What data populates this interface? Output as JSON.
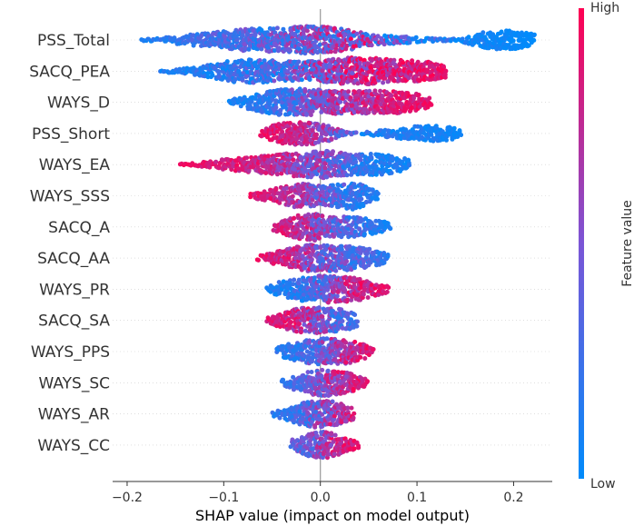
{
  "chart_data": {
    "type": "scatter",
    "subtype": "shap-beeswarm",
    "xlabel": "SHAP value (impact on model output)",
    "xlim": [
      -0.215,
      0.24
    ],
    "x_ticks": [
      -0.2,
      -0.1,
      0.0,
      0.1,
      0.2
    ],
    "x_tick_labels": [
      "−0.2",
      "−0.1",
      "0.0",
      "0.1",
      "0.2"
    ],
    "zero_line": true,
    "colorbar": {
      "title": "Feature value",
      "high_label": "High",
      "low_label": "Low",
      "high_color": "#ff0052",
      "low_color": "#008bfb"
    },
    "features": [
      {
        "name": "PSS_Total",
        "min": -0.195,
        "max": 0.222,
        "dist": [
          [
            -0.2,
            0.0,
            0.04,
            0.1
          ],
          [
            -0.18,
            0.1,
            0.1,
            0.1
          ],
          [
            -0.16,
            0.22,
            0.16,
            0.12
          ],
          [
            -0.14,
            0.35,
            0.2,
            0.12
          ],
          [
            -0.12,
            0.5,
            0.25,
            0.15
          ],
          [
            -0.1,
            0.65,
            0.28,
            0.2
          ],
          [
            -0.08,
            0.8,
            0.3,
            0.25
          ],
          [
            -0.06,
            0.85,
            0.32,
            0.3
          ],
          [
            -0.04,
            0.9,
            0.38,
            0.3
          ],
          [
            -0.02,
            1.0,
            0.45,
            0.35
          ],
          [
            0.0,
            1.0,
            0.5,
            0.4
          ],
          [
            0.02,
            0.85,
            0.55,
            0.4
          ],
          [
            0.04,
            0.6,
            0.55,
            0.45
          ],
          [
            0.05,
            0.4,
            0.5,
            0.5
          ],
          [
            0.07,
            0.3,
            0.2,
            0.5
          ],
          [
            0.1,
            0.2,
            0.15,
            0.4
          ],
          [
            0.12,
            0.1,
            0.1,
            0.3
          ],
          [
            0.145,
            0.08,
            0.0,
            0.2
          ],
          [
            0.16,
            0.45,
            0.05,
            0.1
          ],
          [
            0.18,
            0.7,
            0.05,
            0.08
          ],
          [
            0.2,
            0.7,
            0.03,
            0.05
          ],
          [
            0.222,
            0.4,
            0.0,
            0.05
          ]
        ]
      },
      {
        "name": "SACQ_PEA",
        "min": -0.17,
        "max": 0.13,
        "dist": [
          [
            -0.17,
            0.05,
            0.1,
            0.1
          ],
          [
            -0.15,
            0.15,
            0.1,
            0.1
          ],
          [
            -0.13,
            0.3,
            0.15,
            0.12
          ],
          [
            -0.11,
            0.55,
            0.15,
            0.15
          ],
          [
            -0.09,
            0.8,
            0.18,
            0.2
          ],
          [
            -0.07,
            0.85,
            0.22,
            0.25
          ],
          [
            -0.05,
            0.8,
            0.28,
            0.3
          ],
          [
            -0.03,
            0.7,
            0.35,
            0.35
          ],
          [
            -0.01,
            0.75,
            0.45,
            0.4
          ],
          [
            0.01,
            0.85,
            0.6,
            0.4
          ],
          [
            0.03,
            1.0,
            0.7,
            0.35
          ],
          [
            0.05,
            1.0,
            0.75,
            0.3
          ],
          [
            0.07,
            0.9,
            0.8,
            0.25
          ],
          [
            0.09,
            0.8,
            0.85,
            0.2
          ],
          [
            0.11,
            0.7,
            0.88,
            0.15
          ],
          [
            0.13,
            0.5,
            0.92,
            0.1
          ]
        ]
      },
      {
        "name": "WAYS_D",
        "min": -0.095,
        "max": 0.115,
        "dist": [
          [
            -0.095,
            0.15,
            0.1,
            0.1
          ],
          [
            -0.08,
            0.4,
            0.1,
            0.1
          ],
          [
            -0.06,
            0.75,
            0.15,
            0.15
          ],
          [
            -0.04,
            0.95,
            0.25,
            0.2
          ],
          [
            -0.02,
            1.0,
            0.4,
            0.3
          ],
          [
            0.0,
            0.9,
            0.55,
            0.3
          ],
          [
            0.02,
            0.85,
            0.65,
            0.3
          ],
          [
            0.04,
            0.85,
            0.72,
            0.25
          ],
          [
            0.06,
            0.85,
            0.78,
            0.2
          ],
          [
            0.08,
            0.8,
            0.85,
            0.15
          ],
          [
            0.1,
            0.6,
            0.88,
            0.12
          ],
          [
            0.115,
            0.3,
            0.9,
            0.1
          ]
        ]
      },
      {
        "name": "PSS_Short",
        "min": -0.062,
        "max": 0.147,
        "dist": [
          [
            -0.062,
            0.2,
            0.9,
            0.1
          ],
          [
            -0.05,
            0.6,
            0.88,
            0.1
          ],
          [
            -0.03,
            0.85,
            0.8,
            0.15
          ],
          [
            -0.01,
            0.8,
            0.7,
            0.2
          ],
          [
            0.01,
            0.55,
            0.55,
            0.25
          ],
          [
            0.02,
            0.25,
            0.5,
            0.3
          ],
          [
            0.04,
            0.05,
            0.2,
            0.2
          ],
          [
            0.06,
            0.2,
            0.15,
            0.15
          ],
          [
            0.08,
            0.35,
            0.12,
            0.12
          ],
          [
            0.1,
            0.55,
            0.1,
            0.1
          ],
          [
            0.12,
            0.6,
            0.08,
            0.08
          ],
          [
            0.14,
            0.4,
            0.05,
            0.05
          ],
          [
            0.147,
            0.15,
            0.05,
            0.05
          ]
        ]
      },
      {
        "name": "WAYS_EA",
        "min": -0.15,
        "max": 0.093,
        "dist": [
          [
            -0.15,
            0.05,
            0.95,
            0.05
          ],
          [
            -0.13,
            0.15,
            0.92,
            0.08
          ],
          [
            -0.11,
            0.3,
            0.88,
            0.1
          ],
          [
            -0.09,
            0.45,
            0.85,
            0.12
          ],
          [
            -0.07,
            0.6,
            0.8,
            0.15
          ],
          [
            -0.05,
            0.7,
            0.75,
            0.2
          ],
          [
            -0.03,
            0.85,
            0.65,
            0.25
          ],
          [
            -0.01,
            0.95,
            0.55,
            0.3
          ],
          [
            0.01,
            1.0,
            0.45,
            0.3
          ],
          [
            0.03,
            0.75,
            0.3,
            0.25
          ],
          [
            0.05,
            0.8,
            0.15,
            0.15
          ],
          [
            0.07,
            0.7,
            0.1,
            0.12
          ],
          [
            0.09,
            0.4,
            0.08,
            0.1
          ]
        ]
      },
      {
        "name": "WAYS_SSS",
        "min": -0.073,
        "max": 0.06,
        "dist": [
          [
            -0.073,
            0.15,
            0.9,
            0.1
          ],
          [
            -0.06,
            0.35,
            0.88,
            0.1
          ],
          [
            -0.04,
            0.65,
            0.8,
            0.15
          ],
          [
            -0.02,
            0.9,
            0.65,
            0.2
          ],
          [
            0.0,
            0.75,
            0.45,
            0.3
          ],
          [
            0.02,
            0.85,
            0.3,
            0.25
          ],
          [
            0.035,
            1.0,
            0.22,
            0.2
          ],
          [
            0.05,
            0.6,
            0.15,
            0.15
          ],
          [
            0.06,
            0.25,
            0.1,
            0.1
          ]
        ]
      },
      {
        "name": "SACQ_A",
        "min": -0.048,
        "max": 0.072,
        "dist": [
          [
            -0.048,
            0.25,
            0.85,
            0.1
          ],
          [
            -0.035,
            0.6,
            0.82,
            0.12
          ],
          [
            -0.02,
            0.9,
            0.72,
            0.2
          ],
          [
            -0.005,
            1.0,
            0.6,
            0.3
          ],
          [
            0.01,
            0.7,
            0.45,
            0.3
          ],
          [
            0.025,
            0.75,
            0.35,
            0.25
          ],
          [
            0.04,
            0.7,
            0.25,
            0.2
          ],
          [
            0.055,
            0.5,
            0.15,
            0.15
          ],
          [
            0.07,
            0.35,
            0.1,
            0.1
          ]
        ]
      },
      {
        "name": "SACQ_AA",
        "min": -0.065,
        "max": 0.07,
        "dist": [
          [
            -0.065,
            0.15,
            0.9,
            0.1
          ],
          [
            -0.05,
            0.4,
            0.85,
            0.12
          ],
          [
            -0.03,
            0.75,
            0.75,
            0.2
          ],
          [
            -0.01,
            1.0,
            0.6,
            0.3
          ],
          [
            0.01,
            0.95,
            0.45,
            0.3
          ],
          [
            0.03,
            0.9,
            0.35,
            0.25
          ],
          [
            0.05,
            0.7,
            0.25,
            0.2
          ],
          [
            0.07,
            0.35,
            0.15,
            0.15
          ]
        ]
      },
      {
        "name": "WAYS_PR",
        "min": -0.055,
        "max": 0.07,
        "dist": [
          [
            -0.055,
            0.2,
            0.1,
            0.1
          ],
          [
            -0.04,
            0.6,
            0.12,
            0.12
          ],
          [
            -0.02,
            0.85,
            0.2,
            0.2
          ],
          [
            0.0,
            1.0,
            0.4,
            0.3
          ],
          [
            0.02,
            0.95,
            0.65,
            0.3
          ],
          [
            0.04,
            0.8,
            0.8,
            0.2
          ],
          [
            0.055,
            0.5,
            0.85,
            0.15
          ],
          [
            0.07,
            0.25,
            0.9,
            0.1
          ]
        ]
      },
      {
        "name": "SACQ_SA",
        "min": -0.055,
        "max": 0.038,
        "dist": [
          [
            -0.055,
            0.2,
            0.9,
            0.1
          ],
          [
            -0.04,
            0.55,
            0.85,
            0.12
          ],
          [
            -0.025,
            0.85,
            0.78,
            0.2
          ],
          [
            -0.01,
            1.0,
            0.65,
            0.3
          ],
          [
            0.005,
            0.9,
            0.45,
            0.3
          ],
          [
            0.02,
            0.85,
            0.3,
            0.25
          ],
          [
            0.038,
            0.45,
            0.2,
            0.15
          ]
        ]
      },
      {
        "name": "WAYS_PPS",
        "min": -0.045,
        "max": 0.055,
        "dist": [
          [
            -0.045,
            0.3,
            0.15,
            0.1
          ],
          [
            -0.03,
            0.6,
            0.18,
            0.15
          ],
          [
            -0.015,
            0.85,
            0.3,
            0.2
          ],
          [
            0.0,
            0.95,
            0.45,
            0.3
          ],
          [
            0.015,
            1.0,
            0.6,
            0.3
          ],
          [
            0.03,
            0.85,
            0.75,
            0.2
          ],
          [
            0.045,
            0.55,
            0.85,
            0.15
          ],
          [
            0.055,
            0.25,
            0.9,
            0.1
          ]
        ]
      },
      {
        "name": "WAYS_SC",
        "min": -0.04,
        "max": 0.048,
        "dist": [
          [
            -0.04,
            0.2,
            0.2,
            0.1
          ],
          [
            -0.025,
            0.55,
            0.3,
            0.15
          ],
          [
            -0.01,
            0.85,
            0.45,
            0.25
          ],
          [
            0.005,
            1.0,
            0.6,
            0.3
          ],
          [
            0.02,
            0.85,
            0.7,
            0.25
          ],
          [
            0.035,
            0.6,
            0.8,
            0.2
          ],
          [
            0.048,
            0.3,
            0.85,
            0.12
          ]
        ]
      },
      {
        "name": "WAYS_AR",
        "min": -0.05,
        "max": 0.035,
        "dist": [
          [
            -0.05,
            0.15,
            0.15,
            0.1
          ],
          [
            -0.035,
            0.45,
            0.18,
            0.12
          ],
          [
            -0.02,
            0.8,
            0.28,
            0.2
          ],
          [
            -0.005,
            1.0,
            0.45,
            0.3
          ],
          [
            0.01,
            0.95,
            0.6,
            0.3
          ],
          [
            0.025,
            0.7,
            0.75,
            0.2
          ],
          [
            0.035,
            0.35,
            0.85,
            0.12
          ]
        ]
      },
      {
        "name": "WAYS_CC",
        "min": -0.03,
        "max": 0.04,
        "dist": [
          [
            -0.03,
            0.35,
            0.35,
            0.15
          ],
          [
            -0.02,
            0.65,
            0.4,
            0.2
          ],
          [
            -0.01,
            0.85,
            0.45,
            0.25
          ],
          [
            0.0,
            1.0,
            0.55,
            0.3
          ],
          [
            0.01,
            0.9,
            0.7,
            0.25
          ],
          [
            0.02,
            0.7,
            0.8,
            0.2
          ],
          [
            0.03,
            0.45,
            0.85,
            0.15
          ],
          [
            0.04,
            0.2,
            0.9,
            0.1
          ]
        ]
      }
    ]
  }
}
